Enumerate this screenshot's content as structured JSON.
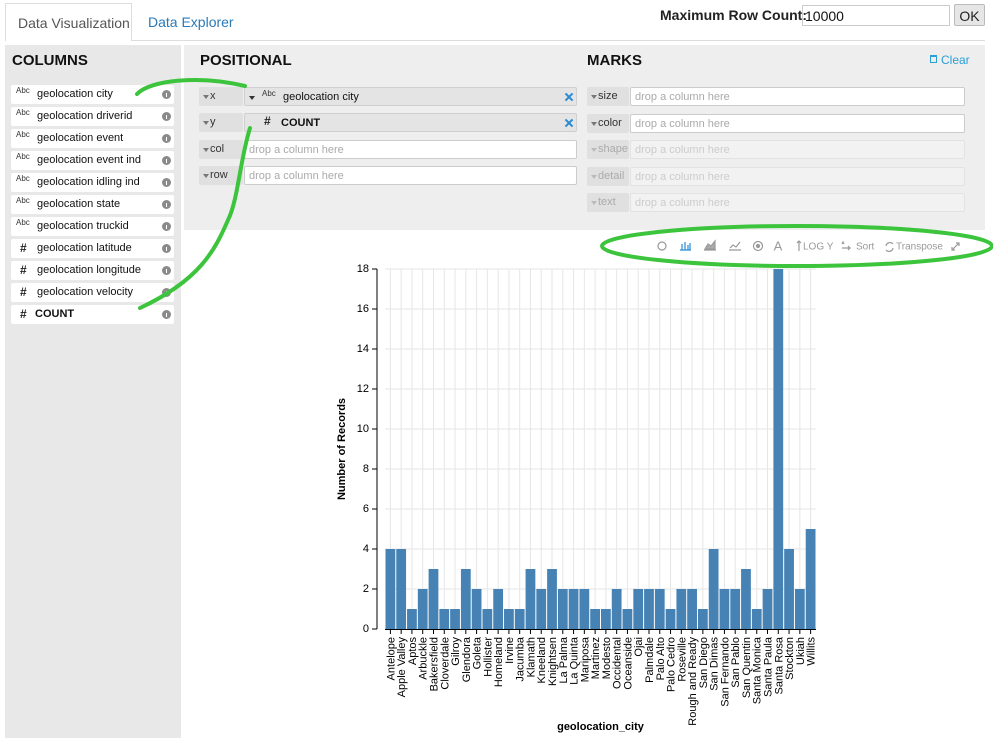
{
  "tabs": [
    "Data Visualization",
    "Data Explorer"
  ],
  "row_count": {
    "label": "Maximum Row Count:",
    "value": "10000",
    "button": "OK"
  },
  "columns": {
    "title": "COLUMNS",
    "items": [
      {
        "type": "Abc",
        "name": "geolocation city"
      },
      {
        "type": "Abc",
        "name": "geolocation driverid"
      },
      {
        "type": "Abc",
        "name": "geolocation event"
      },
      {
        "type": "Abc",
        "name": "geolocation event ind"
      },
      {
        "type": "Abc",
        "name": "geolocation idling ind"
      },
      {
        "type": "Abc",
        "name": "geolocation state"
      },
      {
        "type": "Abc",
        "name": "geolocation truckid"
      },
      {
        "type": "#",
        "name": "geolocation latitude"
      },
      {
        "type": "#",
        "name": "geolocation longitude"
      },
      {
        "type": "#",
        "name": "geolocation velocity"
      },
      {
        "type": "#",
        "name": "COUNT"
      }
    ]
  },
  "positional": {
    "title": "POSITIONAL",
    "shelves": [
      {
        "channel": "x",
        "type": "Abc",
        "field": "geolocation city"
      },
      {
        "channel": "y",
        "type": "#",
        "field": "COUNT"
      },
      {
        "channel": "col",
        "placeholder": "drop a column here"
      },
      {
        "channel": "row",
        "placeholder": "drop a column here"
      }
    ]
  },
  "marks": {
    "title": "MARKS",
    "clear": "Clear",
    "shelves": [
      {
        "channel": "size",
        "placeholder": "drop a column here"
      },
      {
        "channel": "color",
        "placeholder": "drop a column here"
      },
      {
        "channel": "shape",
        "placeholder": "drop a column here"
      },
      {
        "channel": "detail",
        "placeholder": "drop a column here"
      },
      {
        "channel": "text",
        "placeholder": "drop a column here"
      }
    ]
  },
  "toolbar": {
    "text_mark": "A",
    "log": "LOG Y",
    "sort": "Sort",
    "transpose": "Transpose"
  },
  "chart_data": {
    "type": "bar",
    "x_label": "geolocation_city",
    "y_label": "Number of Records",
    "categories": [
      "Antelope",
      "Apple Valley",
      "Aptos",
      "Arbuckle",
      "Bakersfield",
      "Cloverdale",
      "Gilroy",
      "Glendora",
      "Goleta",
      "Hollister",
      "Homeland",
      "Irvine",
      "Jacumba",
      "Klamath",
      "Kneeland",
      "Knightsen",
      "La Palma",
      "La Quinta",
      "Mariposa",
      "Martinez",
      "Modesto",
      "Occidental",
      "Oceanside",
      "Ojai",
      "Palmdale",
      "Palo Alto",
      "Palo Cedro",
      "Roseville",
      "Rough and Ready",
      "San Diego",
      "San Dimas",
      "San Fernando",
      "San Pablo",
      "San Quentin",
      "Santa Monica",
      "Santa Paula",
      "Santa Rosa",
      "Stockton",
      "Ukiah",
      "Willits"
    ],
    "values": [
      4,
      4,
      1,
      2,
      3,
      1,
      1,
      3,
      2,
      1,
      2,
      1,
      1,
      3,
      2,
      3,
      2,
      2,
      2,
      1,
      1,
      2,
      1,
      2,
      2,
      2,
      1,
      2,
      2,
      1,
      4,
      2,
      2,
      3,
      1,
      2,
      18,
      4,
      2,
      5
    ],
    "color": "#4682b4",
    "ylim": [
      0,
      18
    ],
    "yticks": [
      0,
      2,
      4,
      6,
      8,
      10,
      12,
      14,
      16,
      18
    ],
    "grid": true
  }
}
